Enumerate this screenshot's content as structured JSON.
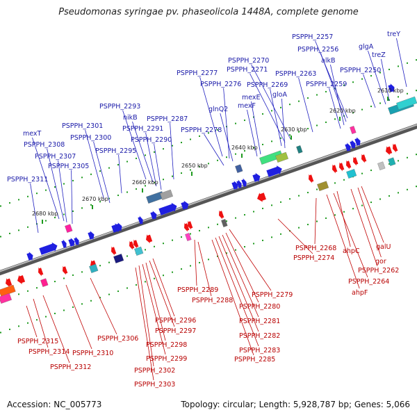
{
  "title": "Pseudomonas syringae pv. phaseolicola 1448A, complete genome",
  "footer": {
    "accession": "Accession: NC_005773",
    "topology": "Topology: circular; Length: 5,928,787 bp; Genes: 5,066"
  },
  "colors": {
    "forward_label": "#1a1aa8",
    "reverse_label": "#b80000",
    "forward_arrow": "#1f1fe0",
    "reverse_arrow": "#ee1111",
    "ticks": "#1e9a1e",
    "backbone": "#8a8a8a"
  },
  "kbp_markers": [
    "2610 kbp",
    "2620 kbp",
    "2630 kbp",
    "2640 kbp",
    "2650 kbp",
    "2660 kbp",
    "2670 kbp",
    "2680 kbp"
  ],
  "forward_genes": [
    "treY",
    "glgA",
    "treZ",
    "PSPPH_2250",
    "PSPPH_2257",
    "PSPPH_2256",
    "alkB",
    "PSPPH_2259",
    "PSPPH_2263",
    "PSPPH_2270",
    "PSPPH_2271",
    "PSPPH_2269",
    "gloA",
    "PSPPH_2277",
    "PSPPH_2276",
    "mexE",
    "mexF",
    "glnQ2",
    "PSPPH_2278",
    "PSPPH_2287",
    "PSPPH_2293",
    "nikB",
    "PSPPH_2291",
    "PSPPH_2290",
    "PSPPH_2295",
    "PSPPH_2301",
    "PSPPH_2300",
    "mexT",
    "PSPPH_2308",
    "PSPPH_2307",
    "PSPPH_2305",
    "PSPPH_2311"
  ],
  "reverse_genes": [
    "galU",
    "gor",
    "PSPPH_2262",
    "ahpC",
    "PSPPH_2264",
    "ahpF",
    "PSPPH_2268",
    "PSPPH_2274",
    "PSPPH_2279",
    "PSPPH_2280",
    "PSPPH_2281",
    "PSPPH_2282",
    "PSPPH_2283",
    "PSPPH_2285",
    "PSPPH_2289",
    "PSPPH_2288",
    "PSPPH_2296",
    "PSPPH_2297",
    "PSPPH_2298",
    "PSPPH_2299",
    "PSPPH_2302",
    "PSPPH_2303",
    "PSPPH_2306",
    "PSPPH_2310",
    "PSPPH_2312",
    "PSPPH_2314",
    "PSPPH_2315"
  ]
}
